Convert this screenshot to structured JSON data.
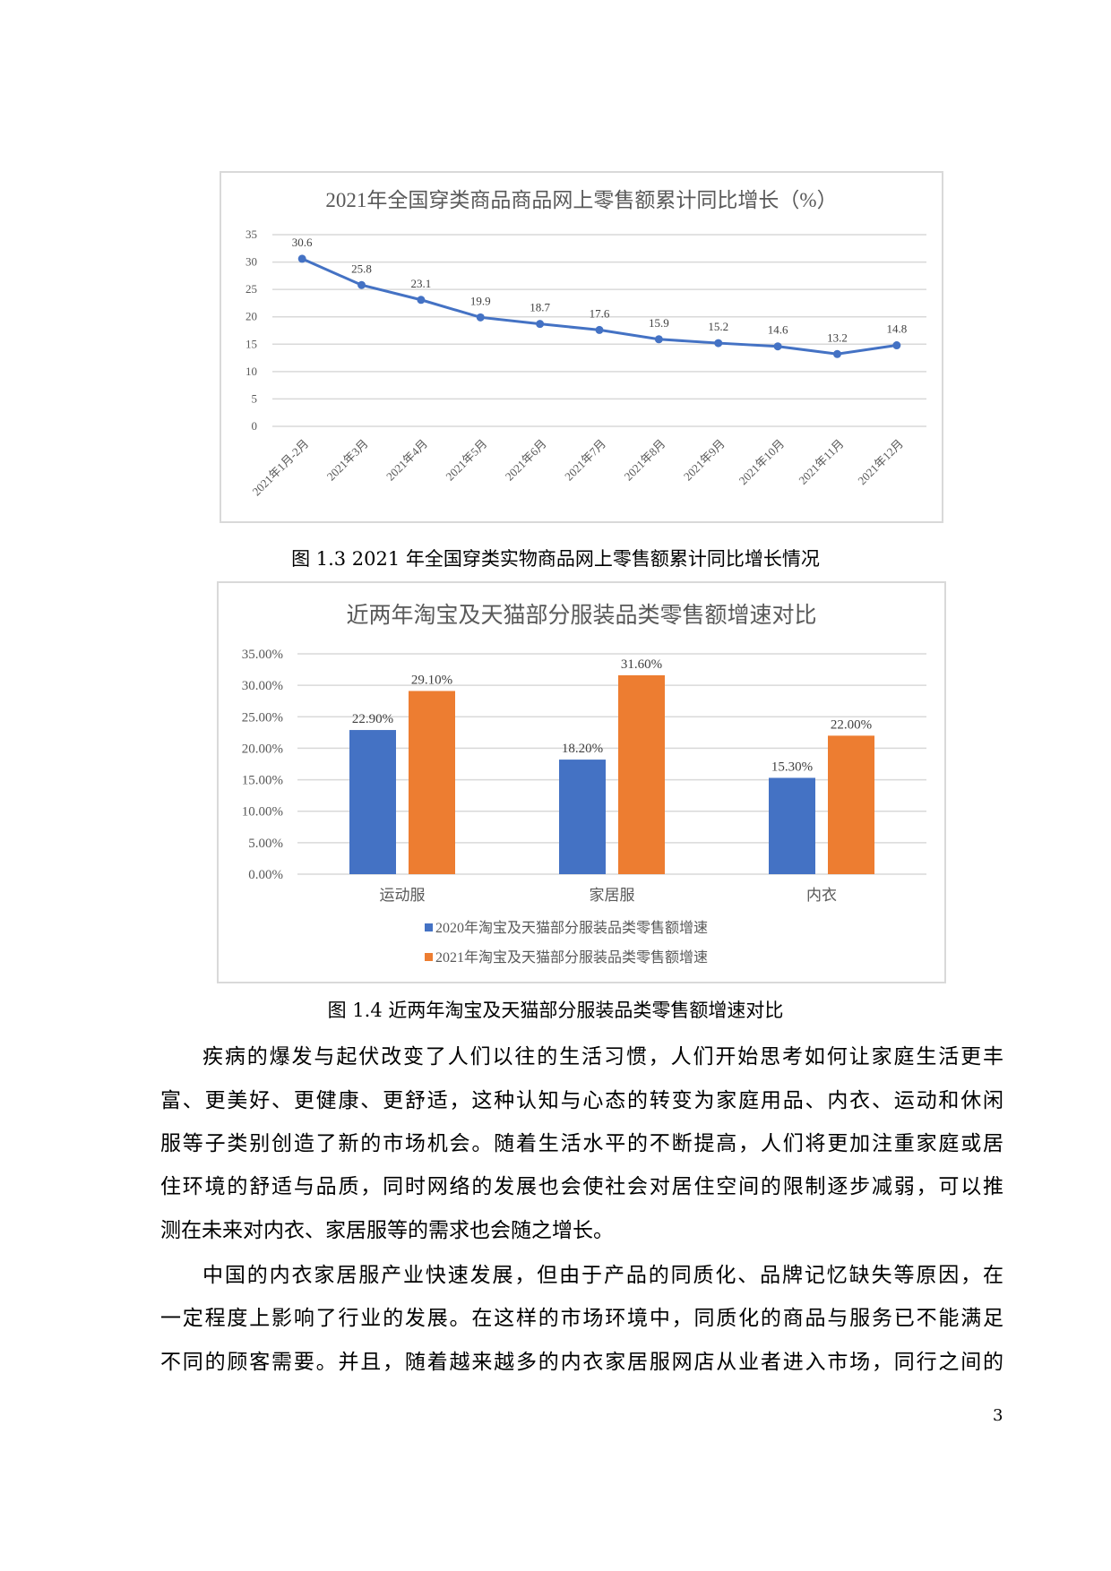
{
  "chart_data": [
    {
      "type": "line",
      "title": "2021年全国穿类商品商品网上零售额累计同比增长（%）",
      "categories": [
        "2021年1月-2月",
        "2021年3月",
        "2021年4月",
        "2021年5月",
        "2021年6月",
        "2021年7月",
        "2021年8月",
        "2021年9月",
        "2021年10月",
        "2021年11月",
        "2021年12月"
      ],
      "values": [
        30.6,
        25.8,
        23.1,
        19.9,
        18.7,
        17.6,
        15.9,
        15.2,
        14.6,
        13.2,
        14.8
      ],
      "data_labels": [
        "30.6",
        "25.8",
        "23.1",
        "19.9",
        "18.7",
        "17.6",
        "15.9",
        "15.2",
        "14.6",
        "13.2",
        "14.8"
      ],
      "ylim": [
        0,
        35
      ],
      "yticks": [
        "0",
        "5",
        "10",
        "15",
        "20",
        "25",
        "30",
        "35"
      ],
      "grid": true,
      "color": "#4472c4"
    },
    {
      "type": "bar",
      "title": "近两年淘宝及天猫部分服装品类零售额增速对比",
      "categories": [
        "运动服",
        "家居服",
        "内衣"
      ],
      "series": [
        {
          "name": "2020年淘宝及天猫部分服装品类零售额增速",
          "values": [
            22.9,
            18.2,
            15.3
          ],
          "labels": [
            "22.90%",
            "18.20%",
            "15.30%"
          ],
          "color": "#4472c4"
        },
        {
          "name": "2021年淘宝及天猫部分服装品类零售额增速",
          "values": [
            29.1,
            31.6,
            22.0
          ],
          "labels": [
            "29.10%",
            "31.60%",
            "22.00%"
          ],
          "color": "#ed7d31"
        }
      ],
      "ylim": [
        0,
        35
      ],
      "yticks": [
        "0.00%",
        "5.00%",
        "10.00%",
        "15.00%",
        "20.00%",
        "25.00%",
        "30.00%",
        "35.00%"
      ],
      "grid": true,
      "legend": "bottom"
    }
  ],
  "captions": {
    "fig13": "图 1.3 2021 年全国穿类实物商品网上零售额累计同比增长情况",
    "fig14": "图 1.4  近两年淘宝及天猫部分服装品类零售额增速对比"
  },
  "paragraphs": [
    [
      "疾病的爆发与起伏改变了人们以往的生活习惯，人们开始思考如何让家庭生活更丰",
      "富、更美好、更健康、更舒适，这种认知与心态的转变为家庭用品、内衣、运动和休闲",
      "服等子类别创造了新的市场机会。随着生活水平的不断提高，人们将更加注重家庭或居",
      "住环境的舒适与品质，同时网络的发展也会使社会对居住空间的限制逐步减弱，可以推",
      "测在未来对内衣、家居服等的需求也会随之增长。"
    ],
    [
      "中国的内衣家居服产业快速发展，但由于产品的同质化、品牌记忆缺失等原因，在",
      "一定程度上影响了行业的发展。在这样的市场环境中，同质化的商品与服务已不能满足",
      "不同的顾客需要。并且，随着越来越多的内衣家居服网店从业者进入市场，同行之间的"
    ]
  ],
  "page_number": "3"
}
